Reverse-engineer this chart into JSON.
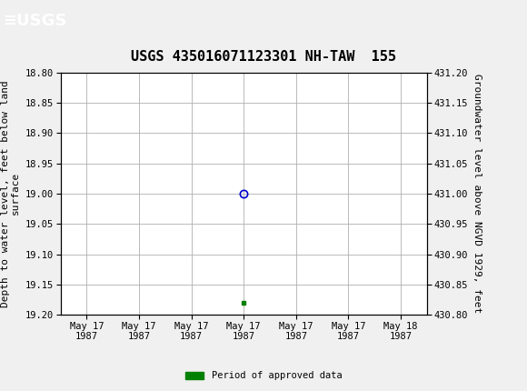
{
  "title": "USGS 435016071123301 NH-TAW  155",
  "header_color": "#1a6b3c",
  "bg_color": "#f0f0f0",
  "plot_bg_color": "#ffffff",
  "grid_color": "#b0b0b0",
  "left_ylabel": "Depth to water level, feet below land\nsurface",
  "right_ylabel": "Groundwater level above NGVD 1929, feet",
  "ylim_left": [
    18.8,
    19.2
  ],
  "ylim_right": [
    430.8,
    431.2
  ],
  "yticks_left": [
    18.8,
    18.85,
    18.9,
    18.95,
    19.0,
    19.05,
    19.1,
    19.15,
    19.2
  ],
  "yticks_right": [
    430.8,
    430.85,
    430.9,
    430.95,
    431.0,
    431.05,
    431.1,
    431.15,
    431.2
  ],
  "data_point_x": 3.0,
  "data_point_y": 19.0,
  "data_point_color": "#0000cc",
  "approved_x": 3.0,
  "approved_y": 19.18,
  "approved_color": "#008000",
  "xticklabels": [
    "May 17\n1987",
    "May 17\n1987",
    "May 17\n1987",
    "May 17\n1987",
    "May 17\n1987",
    "May 17\n1987",
    "May 18\n1987"
  ],
  "xtick_positions": [
    0,
    1,
    2,
    3,
    4,
    5,
    6
  ],
  "legend_label": "Period of approved data",
  "font_family": "DejaVu Sans Mono",
  "title_fontsize": 11,
  "axis_fontsize": 8,
  "tick_fontsize": 7.5
}
